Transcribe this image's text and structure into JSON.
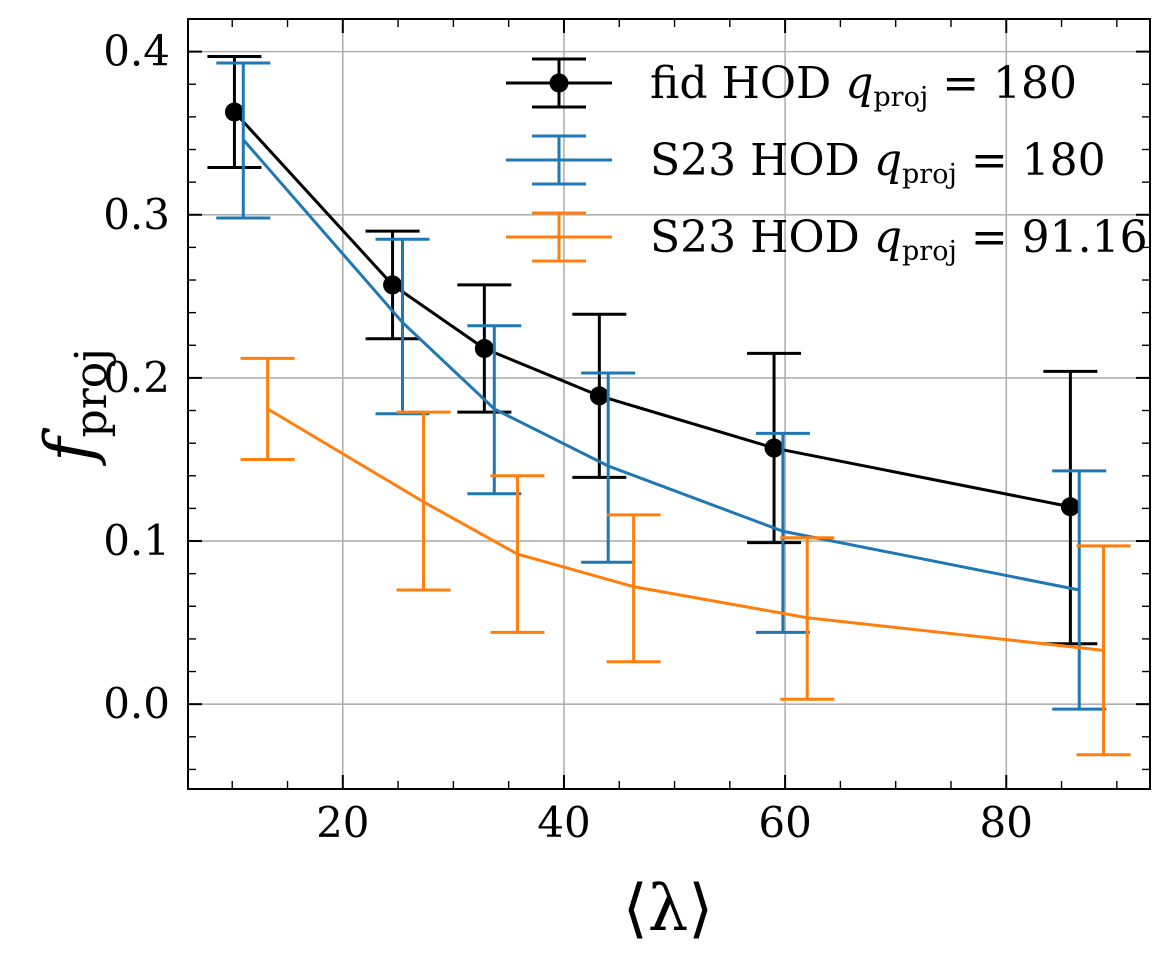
{
  "chart_data": {
    "type": "line",
    "xlabel": "⟨λ⟩",
    "ylabel_main": "f",
    "ylabel_sub": "proj",
    "xlim": [
      6,
      93
    ],
    "ylim": [
      -0.052,
      0.42
    ],
    "xticks": [
      20,
      40,
      60,
      80
    ],
    "xtick_labels": [
      "20",
      "40",
      "60",
      "80"
    ],
    "yticks": [
      0.0,
      0.1,
      0.2,
      0.3,
      0.4
    ],
    "ytick_labels": [
      "0.0",
      "0.1",
      "0.2",
      "0.3",
      "0.4"
    ],
    "grid": true,
    "legend_position": "top-right",
    "series": [
      {
        "name": "fid HOD q_proj = 180",
        "legend_prefix": "fid HOD ",
        "legend_var": "q",
        "legend_sub": "proj",
        "legend_value": "= 180",
        "color": "#000000",
        "marker": "circle",
        "x": [
          10.2,
          24.5,
          32.8,
          43.2,
          59.0,
          85.8
        ],
        "y": [
          0.363,
          0.257,
          0.218,
          0.189,
          0.157,
          0.121
        ],
        "yerr_low": [
          0.329,
          0.224,
          0.179,
          0.139,
          0.099,
          0.037
        ],
        "yerr_high": [
          0.397,
          0.29,
          0.257,
          0.239,
          0.215,
          0.204
        ]
      },
      {
        "name": "S23 HOD q_proj = 180",
        "legend_prefix": "S23 HOD ",
        "legend_var": "q",
        "legend_sub": "proj",
        "legend_value": "= 180",
        "color": "#1f77b4",
        "marker": "none",
        "x": [
          11.0,
          25.4,
          33.7,
          44.0,
          59.8,
          86.6
        ],
        "y": [
          0.346,
          0.234,
          0.181,
          0.146,
          0.106,
          0.07
        ],
        "yerr_low": [
          0.298,
          0.178,
          0.129,
          0.087,
          0.044,
          -0.003
        ],
        "yerr_high": [
          0.393,
          0.285,
          0.232,
          0.203,
          0.166,
          0.143
        ]
      },
      {
        "name": "S23 HOD q_proj = 91.16",
        "legend_prefix": "S23 HOD ",
        "legend_var": "q",
        "legend_sub": "proj",
        "legend_value": "= 91.16",
        "color": "#ff7f0e",
        "marker": "none",
        "x": [
          13.2,
          27.3,
          35.8,
          46.3,
          62.0,
          88.8
        ],
        "y": [
          0.181,
          0.124,
          0.092,
          0.072,
          0.053,
          0.033
        ],
        "yerr_low": [
          0.15,
          0.07,
          0.044,
          0.026,
          0.003,
          -0.031
        ],
        "yerr_high": [
          0.212,
          0.179,
          0.14,
          0.116,
          0.102,
          0.097
        ]
      }
    ]
  }
}
